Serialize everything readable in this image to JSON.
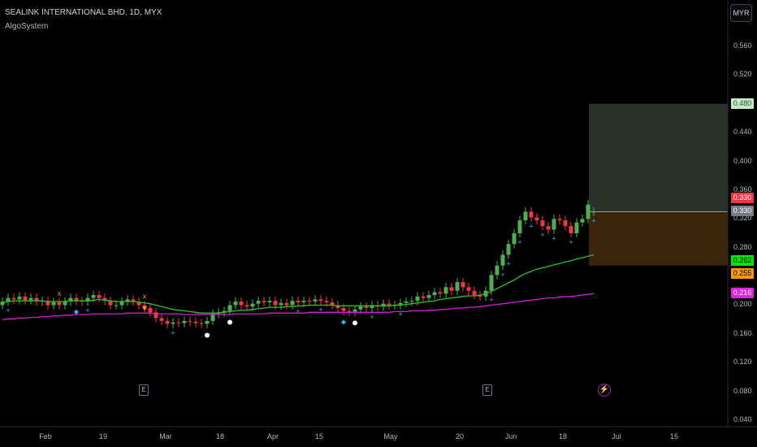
{
  "header": {
    "title": "SEALINK INTERNATIONAL BHD, 1D, MYX",
    "indicator": "AlgoSystem"
  },
  "currency_button": "MYR",
  "y_axis": {
    "ticks": [
      "0.560",
      "0.520",
      "0.480",
      "0.440",
      "0.400",
      "0.360",
      "0.320",
      "0.280",
      "0.240",
      "0.200",
      "0.160",
      "0.120",
      "0.080",
      "0.040"
    ],
    "values": [
      0.56,
      0.52,
      0.48,
      0.44,
      0.4,
      0.36,
      0.32,
      0.28,
      0.24,
      0.2,
      0.16,
      0.12,
      0.08,
      0.04
    ]
  },
  "x_axis": {
    "ticks": [
      "Feb",
      "19",
      "Mar",
      "18",
      "Apr",
      "15",
      "May",
      "20",
      "Jun",
      "18",
      "Jul",
      "15"
    ]
  },
  "price_tags": [
    {
      "label": "0.480",
      "bg": "#c8e6c9",
      "fg": "#1b5e20"
    },
    {
      "label": "0.330",
      "bg": "#f23645",
      "fg": "#ffffff"
    },
    {
      "label": "0.330",
      "bg": "#787b86",
      "fg": "#ffffff"
    },
    {
      "label": "0.262",
      "bg": "#00e600",
      "fg": "#000000"
    },
    {
      "label": "0.255",
      "bg": "#ff9800",
      "fg": "#000000"
    },
    {
      "label": "0.216",
      "bg": "#e91ee3",
      "fg": "#ffffff"
    }
  ],
  "events": [
    {
      "type": "earnings",
      "label": "E"
    },
    {
      "type": "earnings",
      "label": "E"
    },
    {
      "type": "dividend",
      "label": "⚡"
    }
  ],
  "colors": {
    "up": "#4caf50",
    "down": "#f23645",
    "ema_fast": "#26c426",
    "ema_slow": "#d020d0",
    "signal_plus": "#29b6f6",
    "signal_x": "#ff9800",
    "target_zone": "#2a3129",
    "stop_zone": "#3b2409"
  },
  "chart_data": {
    "type": "candlestick",
    "title": "SEALINK INTERNATIONAL BHD, 1D, MYX",
    "ylim": [
      0.04,
      0.56
    ],
    "series": [
      {
        "name": "AlgoSystem",
        "o": [
          0.2,
          0.205,
          0.21,
          0.208,
          0.212,
          0.207,
          0.21,
          0.205,
          0.206,
          0.2,
          0.204,
          0.2,
          0.205,
          0.21,
          0.206,
          0.205,
          0.21,
          0.214,
          0.21,
          0.206,
          0.2,
          0.2,
          0.205,
          0.208,
          0.205,
          0.2,
          0.196,
          0.19,
          0.182,
          0.178,
          0.174,
          0.176,
          0.175,
          0.178,
          0.177,
          0.175,
          0.174,
          0.178,
          0.188,
          0.19,
          0.192,
          0.2,
          0.205,
          0.2,
          0.198,
          0.202,
          0.206,
          0.204,
          0.206,
          0.2,
          0.203,
          0.2,
          0.206,
          0.204,
          0.206,
          0.205,
          0.208,
          0.206,
          0.204,
          0.2,
          0.196,
          0.192,
          0.191,
          0.194,
          0.198,
          0.196,
          0.2,
          0.198,
          0.202,
          0.2,
          0.2,
          0.203,
          0.205,
          0.206,
          0.212,
          0.21,
          0.214,
          0.218,
          0.216,
          0.225,
          0.22,
          0.232,
          0.225,
          0.22,
          0.214,
          0.212,
          0.22,
          0.242,
          0.255,
          0.27,
          0.285,
          0.3,
          0.318,
          0.33,
          0.322,
          0.318,
          0.31,
          0.305,
          0.32,
          0.318,
          0.31,
          0.3,
          0.315,
          0.32,
          0.33
        ],
        "c": [
          0.205,
          0.21,
          0.208,
          0.212,
          0.207,
          0.21,
          0.205,
          0.206,
          0.2,
          0.204,
          0.2,
          0.205,
          0.21,
          0.206,
          0.205,
          0.21,
          0.214,
          0.21,
          0.206,
          0.2,
          0.2,
          0.205,
          0.208,
          0.205,
          0.2,
          0.196,
          0.19,
          0.182,
          0.178,
          0.174,
          0.176,
          0.175,
          0.178,
          0.177,
          0.175,
          0.174,
          0.178,
          0.188,
          0.19,
          0.192,
          0.2,
          0.205,
          0.2,
          0.198,
          0.202,
          0.206,
          0.204,
          0.206,
          0.2,
          0.203,
          0.2,
          0.206,
          0.204,
          0.206,
          0.205,
          0.208,
          0.206,
          0.204,
          0.2,
          0.196,
          0.192,
          0.191,
          0.194,
          0.198,
          0.196,
          0.2,
          0.198,
          0.202,
          0.2,
          0.2,
          0.203,
          0.205,
          0.206,
          0.212,
          0.21,
          0.214,
          0.218,
          0.216,
          0.225,
          0.22,
          0.232,
          0.225,
          0.22,
          0.214,
          0.212,
          0.22,
          0.242,
          0.255,
          0.27,
          0.285,
          0.3,
          0.318,
          0.33,
          0.322,
          0.318,
          0.31,
          0.305,
          0.32,
          0.318,
          0.31,
          0.3,
          0.315,
          0.32,
          0.34,
          0.33
        ],
        "ema_fast": [
          0.204,
          0.205,
          0.206,
          0.206,
          0.206,
          0.206,
          0.206,
          0.206,
          0.205,
          0.205,
          0.205,
          0.205,
          0.206,
          0.206,
          0.206,
          0.206,
          0.207,
          0.208,
          0.207,
          0.206,
          0.205,
          0.205,
          0.205,
          0.205,
          0.204,
          0.203,
          0.202,
          0.2,
          0.198,
          0.196,
          0.194,
          0.193,
          0.192,
          0.191,
          0.19,
          0.189,
          0.189,
          0.189,
          0.189,
          0.19,
          0.191,
          0.192,
          0.193,
          0.193,
          0.194,
          0.195,
          0.196,
          0.197,
          0.197,
          0.197,
          0.198,
          0.198,
          0.199,
          0.199,
          0.2,
          0.2,
          0.2,
          0.2,
          0.2,
          0.199,
          0.199,
          0.199,
          0.199,
          0.199,
          0.199,
          0.199,
          0.199,
          0.199,
          0.199,
          0.2,
          0.2,
          0.201,
          0.202,
          0.203,
          0.204,
          0.205,
          0.206,
          0.208,
          0.209,
          0.21,
          0.211,
          0.212,
          0.213,
          0.213,
          0.214,
          0.216,
          0.219,
          0.223,
          0.227,
          0.231,
          0.235,
          0.24,
          0.244,
          0.247,
          0.25,
          0.252,
          0.254,
          0.256,
          0.258,
          0.26,
          0.262,
          0.264,
          0.266,
          0.268,
          0.27
        ],
        "ema_slow": [
          0.18,
          0.181,
          0.181,
          0.182,
          0.182,
          0.183,
          0.183,
          0.184,
          0.184,
          0.185,
          0.185,
          0.186,
          0.186,
          0.187,
          0.187,
          0.187,
          0.188,
          0.188,
          0.188,
          0.188,
          0.188,
          0.188,
          0.189,
          0.189,
          0.189,
          0.189,
          0.189,
          0.188,
          0.188,
          0.188,
          0.188,
          0.188,
          0.187,
          0.187,
          0.187,
          0.187,
          0.187,
          0.187,
          0.187,
          0.187,
          0.187,
          0.188,
          0.188,
          0.188,
          0.188,
          0.188,
          0.188,
          0.189,
          0.189,
          0.189,
          0.189,
          0.189,
          0.189,
          0.189,
          0.19,
          0.19,
          0.19,
          0.19,
          0.19,
          0.19,
          0.19,
          0.19,
          0.19,
          0.19,
          0.19,
          0.19,
          0.19,
          0.19,
          0.19,
          0.191,
          0.191,
          0.191,
          0.192,
          0.192,
          0.192,
          0.193,
          0.193,
          0.194,
          0.194,
          0.195,
          0.196,
          0.196,
          0.197,
          0.197,
          0.198,
          0.199,
          0.2,
          0.201,
          0.202,
          0.203,
          0.204,
          0.205,
          0.206,
          0.207,
          0.208,
          0.209,
          0.21,
          0.21,
          0.211,
          0.212,
          0.212,
          0.213,
          0.214,
          0.215,
          0.216
        ]
      }
    ],
    "target_zone": [
      0.33,
      0.48
    ],
    "stop_zone": [
      0.255,
      0.33
    ],
    "grid": false
  }
}
